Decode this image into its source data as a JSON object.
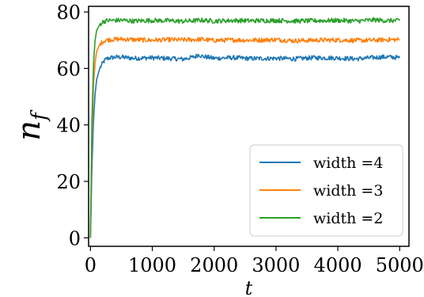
{
  "chart_data": {
    "type": "line",
    "xlabel": "t",
    "ylabel": "n_f",
    "ylabel_base": "n",
    "ylabel_sub": "f",
    "xlim": [
      -30,
      5150
    ],
    "ylim": [
      -3,
      82
    ],
    "xticks": [
      0,
      1000,
      2000,
      3000,
      4000,
      5000
    ],
    "yticks": [
      0,
      20,
      40,
      60,
      80
    ],
    "legend_position": "lower-right",
    "series": [
      {
        "name": "width =4",
        "color": "#1f77b4",
        "x": [
          0,
          25,
          50,
          75,
          100,
          150,
          200,
          250,
          300,
          400,
          500,
          700,
          1000,
          1300,
          1500,
          1700,
          1750,
          1800,
          2000,
          2300,
          2600,
          3000,
          3300,
          3600,
          4000,
          4300,
          4600,
          4800,
          5000
        ],
        "values": [
          0,
          26,
          42,
          51,
          56,
          60,
          62,
          63.3,
          63.7,
          64,
          64,
          63.6,
          63.8,
          63.5,
          63.3,
          64.2,
          65,
          64.3,
          63.6,
          63.8,
          63.5,
          63.6,
          63.4,
          63.8,
          63.7,
          63.4,
          63.9,
          64.1,
          63.8
        ]
      },
      {
        "name": "width =3",
        "color": "#ff7f0e",
        "x": [
          0,
          25,
          50,
          75,
          100,
          150,
          200,
          250,
          300,
          400,
          500,
          700,
          1000,
          1300,
          1500,
          1800,
          2000,
          2300,
          2600,
          3000,
          3300,
          3600,
          4000,
          4300,
          4600,
          4800,
          5000
        ],
        "values": [
          0,
          35,
          55,
          62,
          66,
          68.5,
          69.5,
          70,
          70.2,
          70.3,
          70.4,
          70.2,
          70,
          70.2,
          70.1,
          70.3,
          69.9,
          70.1,
          70,
          70.2,
          69.8,
          70,
          70.1,
          69.9,
          70,
          70.2,
          70.2
        ]
      },
      {
        "name": "width =2",
        "color": "#2ca02c",
        "x": [
          0,
          25,
          50,
          75,
          100,
          150,
          200,
          250,
          300,
          400,
          500,
          700,
          1000,
          1300,
          1500,
          1800,
          2000,
          2300,
          2600,
          3000,
          3300,
          3600,
          4000,
          4300,
          4600,
          4800,
          5000
        ],
        "values": [
          0,
          42,
          62,
          70,
          73.5,
          75.5,
          76.5,
          76.9,
          77,
          77,
          77.1,
          76.8,
          77,
          76.9,
          76.7,
          77.1,
          76.8,
          77,
          76.9,
          77,
          76.8,
          76.9,
          77,
          76.8,
          77.2,
          76.9,
          77
        ]
      }
    ]
  }
}
